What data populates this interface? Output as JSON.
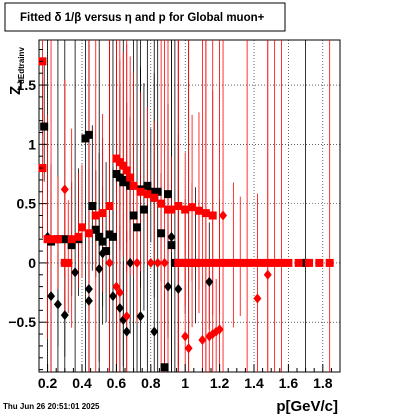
{
  "chart_data": {
    "type": "scatter",
    "title": "Fitted δ 1/β versus η and p for Global muon+",
    "xlabel": "p[GeV/c]",
    "ylabel_main": "Z",
    "ylabel_sub": "dEdtrainv",
    "datestamp": "Thu Jun 26 20:51:01 2025",
    "xlim": [
      0.15,
      1.9
    ],
    "ylim": [
      -0.92,
      1.88
    ],
    "xticks": [
      0.2,
      0.4,
      0.6,
      0.8,
      1.0,
      1.2,
      1.4,
      1.6,
      1.8
    ],
    "xtick_labels": [
      "0.2",
      "0.4",
      "0.6",
      "0.8",
      "1",
      "1.2",
      "1.4",
      "1.6",
      "1.8"
    ],
    "yticks": [
      -0.5,
      0,
      0.5,
      1.0,
      1.5
    ],
    "ytick_labels": [
      "−0.5",
      "0",
      "0.5",
      "1",
      "1.5"
    ],
    "grid": true,
    "series": [
      {
        "color": "#000000",
        "squares": [
          [
            0.18,
            1.15
          ],
          [
            0.22,
            0.18
          ],
          [
            0.26,
            0.2
          ],
          [
            0.3,
            0.2
          ],
          [
            0.34,
            0.15
          ],
          [
            0.38,
            0.2
          ],
          [
            0.42,
            1.05
          ],
          [
            0.44,
            1.08
          ],
          [
            0.46,
            0.48
          ],
          [
            0.48,
            0.28
          ],
          [
            0.5,
            0.22
          ],
          [
            0.52,
            0.18
          ],
          [
            0.54,
            0.1
          ],
          [
            0.56,
            0.24
          ],
          [
            0.58,
            0.22
          ],
          [
            0.6,
            0.75
          ],
          [
            0.62,
            0.72
          ],
          [
            0.64,
            0.68
          ],
          [
            0.66,
            0.7
          ],
          [
            0.68,
            0.65
          ],
          [
            0.7,
            0.4
          ],
          [
            0.72,
            0.3
          ],
          [
            0.74,
            0.62
          ],
          [
            0.76,
            0.45
          ],
          [
            0.78,
            0.65
          ],
          [
            0.8,
            0.6
          ],
          [
            0.82,
            0.55
          ],
          [
            0.84,
            0.6
          ],
          [
            0.86,
            0.25
          ],
          [
            0.88,
            -0.88
          ],
          [
            0.9,
            0.58
          ],
          [
            0.92,
            0.15
          ],
          [
            0.94,
            0.0
          ],
          [
            0.96,
            0.0
          ],
          [
            1.0,
            0.0
          ],
          [
            1.02,
            0.0
          ],
          [
            1.06,
            0.0
          ],
          [
            1.7,
            0.0
          ]
        ],
        "diamonds": [
          [
            0.2,
            0.22
          ],
          [
            0.22,
            -0.28
          ],
          [
            0.26,
            -0.35
          ],
          [
            0.3,
            -0.44
          ],
          [
            0.36,
            -0.08
          ],
          [
            0.44,
            -0.22
          ],
          [
            0.44,
            -0.32
          ],
          [
            0.5,
            -0.05
          ],
          [
            0.52,
            0.08
          ],
          [
            0.58,
            -0.28
          ],
          [
            0.62,
            -0.38
          ],
          [
            0.64,
            -0.48
          ],
          [
            0.66,
            -0.58
          ],
          [
            0.68,
            -0.0
          ],
          [
            0.74,
            -0.45
          ],
          [
            0.82,
            -0.58
          ],
          [
            0.9,
            -0.2
          ],
          [
            0.92,
            0.22
          ],
          [
            0.96,
            -0.22
          ],
          [
            1.14,
            -0.16
          ]
        ]
      },
      {
        "color": "#ff0000",
        "squares": [
          [
            0.17,
            1.7
          ],
          [
            0.17,
            0.8
          ],
          [
            0.2,
            0.2
          ],
          [
            0.22,
            0.2
          ],
          [
            0.26,
            0.2
          ],
          [
            0.3,
            0.0
          ],
          [
            0.32,
            0.0
          ],
          [
            0.34,
            0.2
          ],
          [
            0.38,
            0.22
          ],
          [
            0.4,
            0.3
          ],
          [
            0.44,
            0.25
          ],
          [
            0.48,
            0.4
          ],
          [
            0.52,
            0.42
          ],
          [
            0.56,
            0.48
          ],
          [
            0.6,
            0.88
          ],
          [
            0.62,
            0.85
          ],
          [
            0.64,
            0.82
          ],
          [
            0.66,
            0.78
          ],
          [
            0.68,
            0.72
          ],
          [
            0.7,
            0.65
          ],
          [
            0.74,
            0.6
          ],
          [
            0.78,
            0.58
          ],
          [
            0.82,
            0.55
          ],
          [
            0.86,
            0.5
          ],
          [
            0.9,
            0.45
          ],
          [
            0.92,
            0.45
          ],
          [
            0.96,
            0.48
          ],
          [
            1.0,
            0.45
          ],
          [
            1.04,
            0.47
          ],
          [
            1.08,
            0.44
          ],
          [
            1.12,
            0.42
          ],
          [
            1.16,
            0.4
          ],
          [
            0.96,
            0.0
          ],
          [
            1.0,
            0.0
          ],
          [
            1.04,
            0.0
          ],
          [
            1.08,
            0.0
          ],
          [
            1.12,
            0.0
          ],
          [
            1.16,
            0.0
          ],
          [
            1.2,
            0.0
          ],
          [
            1.24,
            0.0
          ],
          [
            1.28,
            0.0
          ],
          [
            1.32,
            0.0
          ],
          [
            1.36,
            0.0
          ],
          [
            1.4,
            0.0
          ],
          [
            1.44,
            0.0
          ],
          [
            1.48,
            0.0
          ],
          [
            1.52,
            0.0
          ],
          [
            1.56,
            0.0
          ],
          [
            1.6,
            0.0
          ],
          [
            1.66,
            0.0
          ],
          [
            1.72,
            0.0
          ],
          [
            1.78,
            0.0
          ],
          [
            1.84,
            0.0
          ]
        ],
        "diamonds": [
          [
            0.3,
            0.62
          ],
          [
            0.56,
            0.0
          ],
          [
            0.6,
            -0.2
          ],
          [
            0.62,
            -0.25
          ],
          [
            0.66,
            -0.45
          ],
          [
            0.72,
            0.0
          ],
          [
            0.8,
            0.0
          ],
          [
            0.84,
            0.0
          ],
          [
            0.88,
            0.0
          ],
          [
            1.0,
            -0.62
          ],
          [
            1.02,
            -0.72
          ],
          [
            1.1,
            -0.65
          ],
          [
            1.14,
            -0.62
          ],
          [
            1.16,
            -0.6
          ],
          [
            1.18,
            -0.58
          ],
          [
            1.2,
            -0.56
          ],
          [
            1.22,
            0.4
          ],
          [
            1.42,
            -0.3
          ],
          [
            1.48,
            -0.1
          ]
        ]
      }
    ]
  }
}
